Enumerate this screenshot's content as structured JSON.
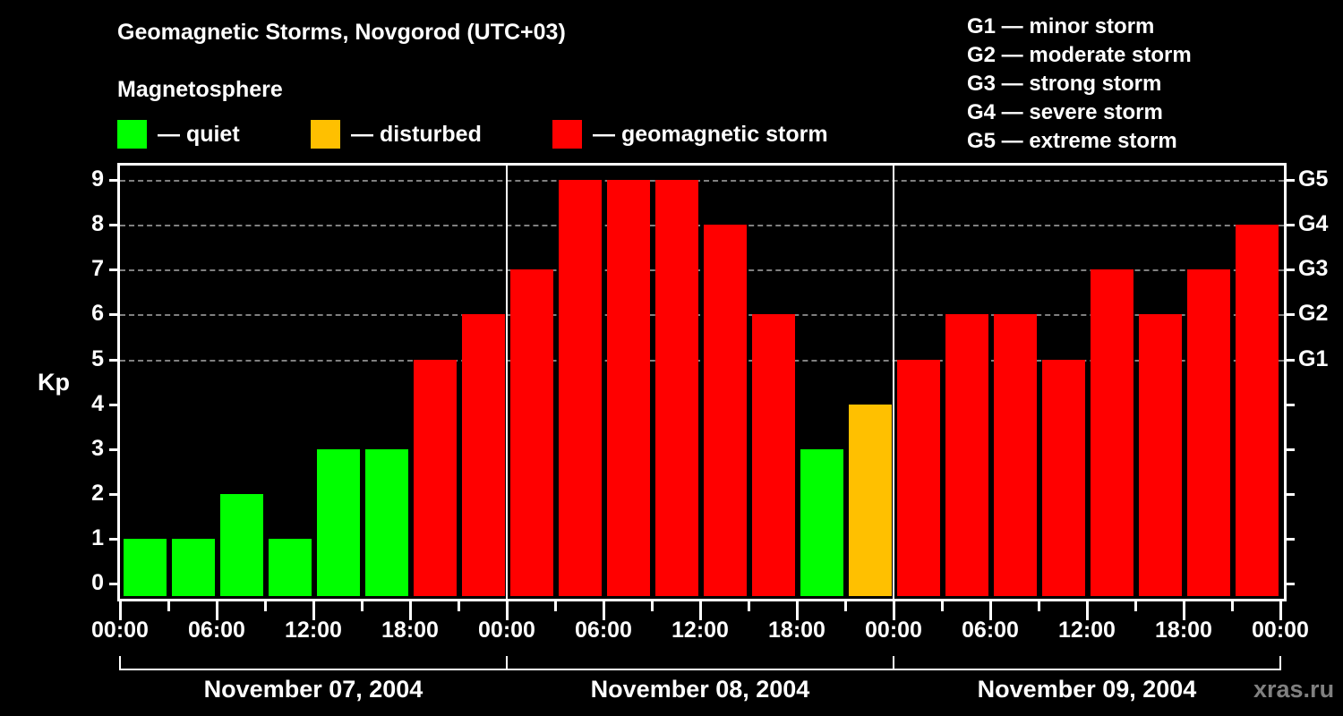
{
  "header": {
    "title": "Geomagnetic Storms, Novgorod (UTC+03)",
    "subtitle": "Magnetosphere"
  },
  "legend": {
    "items": [
      {
        "label": "— quiet",
        "color": "#00ff00"
      },
      {
        "label": "— disturbed",
        "color": "#ffc000"
      },
      {
        "label": "— geomagnetic storm",
        "color": "#ff0000"
      }
    ]
  },
  "g_scale_legend": [
    "G1 — minor storm",
    "G2 — moderate storm",
    "G3 — strong storm",
    "G4 — severe storm",
    "G5 — extreme storm"
  ],
  "axes": {
    "ylabel": "Kp",
    "yticks": [
      "0",
      "1",
      "2",
      "3",
      "4",
      "5",
      "6",
      "7",
      "8",
      "9"
    ],
    "right_labels": {
      "5": "G1",
      "6": "G2",
      "7": "G3",
      "8": "G4",
      "9": "G5"
    },
    "xtick_labels": [
      "00:00",
      "06:00",
      "12:00",
      "18:00",
      "00:00",
      "06:00",
      "12:00",
      "18:00",
      "00:00",
      "06:00",
      "12:00",
      "18:00",
      "00:00"
    ],
    "dates": [
      "November 07, 2004",
      "November 08, 2004",
      "November 09, 2004"
    ]
  },
  "watermark": "xras.ru",
  "colors": {
    "quiet": "#00ff00",
    "disturbed": "#ffc000",
    "storm": "#ff0000",
    "grid": "#808080"
  },
  "chart_data": {
    "type": "bar",
    "title": "Geomagnetic Storms, Novgorod (UTC+03)",
    "subtitle": "Magnetosphere",
    "xlabel": "",
    "ylabel": "Kp",
    "ylim": [
      0,
      9
    ],
    "grid": "dashed horizontal at Kp 5-9",
    "legend_position": "top",
    "interval_hours": 3,
    "days": [
      "November 07, 2004",
      "November 08, 2004",
      "November 09, 2004"
    ],
    "categories": [
      "Nov 07 00-03",
      "Nov 07 03-06",
      "Nov 07 06-09",
      "Nov 07 09-12",
      "Nov 07 12-15",
      "Nov 07 15-18",
      "Nov 07 18-21",
      "Nov 07 21-24",
      "Nov 08 00-03",
      "Nov 08 03-06",
      "Nov 08 06-09",
      "Nov 08 09-12",
      "Nov 08 12-15",
      "Nov 08 15-18",
      "Nov 08 18-21",
      "Nov 08 21-24",
      "Nov 09 00-03",
      "Nov 09 03-06",
      "Nov 09 06-09",
      "Nov 09 09-12",
      "Nov 09 12-15",
      "Nov 09 15-18",
      "Nov 09 18-21",
      "Nov 09 21-24"
    ],
    "values": [
      1,
      1,
      2,
      1,
      3,
      3,
      5,
      6,
      7,
      9,
      9,
      9,
      8,
      6,
      3,
      4,
      5,
      6,
      6,
      5,
      7,
      6,
      7,
      8
    ],
    "status": [
      "quiet",
      "quiet",
      "quiet",
      "quiet",
      "quiet",
      "quiet",
      "storm",
      "storm",
      "storm",
      "storm",
      "storm",
      "storm",
      "storm",
      "storm",
      "quiet",
      "disturbed",
      "storm",
      "storm",
      "storm",
      "storm",
      "storm",
      "storm",
      "storm",
      "storm"
    ],
    "right_axis": {
      "5": "G1",
      "6": "G2",
      "7": "G3",
      "8": "G4",
      "9": "G5"
    }
  }
}
